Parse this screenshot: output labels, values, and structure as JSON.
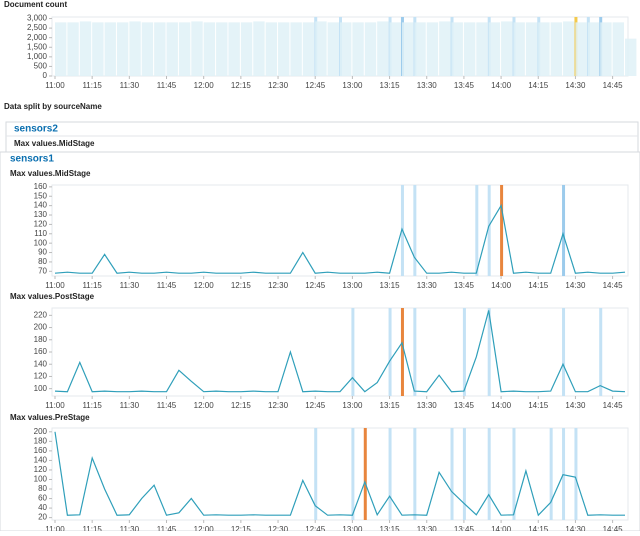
{
  "split_label": "Data split by sourceName",
  "panels": [
    {
      "name": "sensors2",
      "label": "Max values.MidStage"
    },
    {
      "name": "sensors1"
    }
  ],
  "chart_data": [
    {
      "type": "bar",
      "title": "Document count",
      "color": "#dff1f7",
      "x": [
        "11:00",
        "11:05",
        "11:10",
        "11:15",
        "11:20",
        "11:25",
        "11:30",
        "11:35",
        "11:40",
        "11:45",
        "11:50",
        "11:55",
        "12:00",
        "12:05",
        "12:10",
        "12:15",
        "12:20",
        "12:25",
        "12:30",
        "12:35",
        "12:40",
        "12:45",
        "12:50",
        "12:55",
        "13:00",
        "13:05",
        "13:10",
        "13:15",
        "13:20",
        "13:25",
        "13:30",
        "13:35",
        "13:40",
        "13:45",
        "13:50",
        "13:55",
        "14:00",
        "14:05",
        "14:10",
        "14:15",
        "14:20",
        "14:25",
        "14:30",
        "14:35",
        "14:40",
        "14:45",
        "14:50"
      ],
      "values": [
        2800,
        2800,
        2850,
        2800,
        2800,
        2800,
        2850,
        2800,
        2800,
        2800,
        2800,
        2850,
        2800,
        2800,
        2800,
        2800,
        2850,
        2800,
        2800,
        2800,
        2800,
        2850,
        2800,
        2800,
        2800,
        2800,
        2850,
        2800,
        2800,
        2800,
        2800,
        2850,
        2800,
        2800,
        2800,
        2800,
        2850,
        2800,
        2800,
        2800,
        2800,
        2850,
        2800,
        2800,
        2800,
        2800,
        1950
      ],
      "ylim": [
        0,
        3080
      ],
      "yticks": [
        0,
        500,
        {
          "value": 1000,
          "label": "1,000"
        },
        {
          "value": 1500,
          "label": "1,500"
        },
        {
          "value": 2000,
          "label": "2,000"
        },
        {
          "value": 2500,
          "label": "2,500"
        },
        {
          "value": 3000,
          "label": "3,000"
        }
      ],
      "xlim": [
        "11:00",
        "14:50"
      ],
      "xticks": [
        "11:00",
        "11:15",
        "11:30",
        "11:45",
        "12:00",
        "12:15",
        "12:30",
        "12:45",
        "13:00",
        "13:15",
        "13:30",
        "13:45",
        "14:00",
        "14:15",
        "14:30",
        "14:45"
      ],
      "anomalies": [
        {
          "x": "12:45",
          "color": "#c4e2f5"
        },
        {
          "x": "12:55",
          "color": "#c4e2f5"
        },
        {
          "x": "13:15",
          "color": "#c4e2f5"
        },
        {
          "x": "13:20",
          "color": "#9ccbec"
        },
        {
          "x": "13:25",
          "color": "#c4e2f5"
        },
        {
          "x": "13:40",
          "color": "#c4e2f5"
        },
        {
          "x": "13:55",
          "color": "#c4e2f5"
        },
        {
          "x": "14:05",
          "color": "#c4e2f5"
        },
        {
          "x": "14:15",
          "color": "#c4e2f5"
        },
        {
          "x": "14:30",
          "color": "#f2c94c"
        },
        {
          "x": "14:35",
          "color": "#c4e2f5"
        },
        {
          "x": "14:40",
          "color": "#9ccbec"
        }
      ]
    },
    {
      "type": "line",
      "title": "Max values.MidStage",
      "color": "#2f9fba",
      "x": [
        "11:00",
        "11:05",
        "11:10",
        "11:15",
        "11:20",
        "11:25",
        "11:30",
        "11:35",
        "11:40",
        "11:45",
        "11:50",
        "11:55",
        "12:00",
        "12:05",
        "12:10",
        "12:15",
        "12:20",
        "12:25",
        "12:30",
        "12:35",
        "12:40",
        "12:45",
        "12:50",
        "12:55",
        "13:00",
        "13:05",
        "13:10",
        "13:15",
        "13:20",
        "13:25",
        "13:30",
        "13:35",
        "13:40",
        "13:45",
        "13:50",
        "13:55",
        "14:00",
        "14:05",
        "14:10",
        "14:15",
        "14:20",
        "14:25",
        "14:30",
        "14:35",
        "14:40",
        "14:45",
        "14:50"
      ],
      "values": [
        68,
        69,
        68,
        68,
        88,
        68,
        69,
        68,
        68,
        69,
        68,
        68,
        69,
        68,
        68,
        68,
        69,
        68,
        68,
        68,
        90,
        68,
        69,
        68,
        68,
        68,
        69,
        68,
        115,
        85,
        68,
        68,
        69,
        68,
        68,
        118,
        140,
        68,
        69,
        68,
        68,
        110,
        68,
        69,
        68,
        68,
        69
      ],
      "ylim": [
        65,
        162
      ],
      "yticks": [
        70,
        80,
        90,
        100,
        110,
        120,
        130,
        140,
        150,
        160
      ],
      "xlim": [
        "11:00",
        "14:50"
      ],
      "xticks": [
        "11:00",
        "11:15",
        "11:30",
        "11:45",
        "12:00",
        "12:15",
        "12:30",
        "12:45",
        "13:00",
        "13:15",
        "13:30",
        "13:45",
        "14:00",
        "14:15",
        "14:30",
        "14:45"
      ],
      "anomalies": [
        {
          "x": "13:20",
          "color": "#c4e2f5"
        },
        {
          "x": "13:25",
          "color": "#c4e2f5"
        },
        {
          "x": "13:50",
          "color": "#c4e2f5"
        },
        {
          "x": "13:55",
          "color": "#c4e2f5"
        },
        {
          "x": "14:00",
          "color": "#e8853d"
        },
        {
          "x": "14:25",
          "color": "#9ccbec"
        }
      ]
    },
    {
      "type": "line",
      "title": "Max values.PostStage",
      "color": "#2f9fba",
      "x": [
        "11:00",
        "11:05",
        "11:10",
        "11:15",
        "11:20",
        "11:25",
        "11:30",
        "11:35",
        "11:40",
        "11:45",
        "11:50",
        "11:55",
        "12:00",
        "12:05",
        "12:10",
        "12:15",
        "12:20",
        "12:25",
        "12:30",
        "12:35",
        "12:40",
        "12:45",
        "12:50",
        "12:55",
        "13:00",
        "13:05",
        "13:10",
        "13:15",
        "13:20",
        "13:25",
        "13:30",
        "13:35",
        "13:40",
        "13:45",
        "13:50",
        "13:55",
        "14:00",
        "14:05",
        "14:10",
        "14:15",
        "14:20",
        "14:25",
        "14:30",
        "14:35",
        "14:40",
        "14:45",
        "14:50"
      ],
      "values": [
        96,
        95,
        143,
        95,
        96,
        95,
        95,
        96,
        95,
        95,
        130,
        112,
        95,
        96,
        95,
        95,
        96,
        95,
        95,
        160,
        95,
        96,
        95,
        95,
        118,
        95,
        110,
        145,
        175,
        96,
        95,
        122,
        95,
        96,
        152,
        228,
        95,
        96,
        95,
        95,
        96,
        140,
        95,
        95,
        105,
        96,
        95
      ],
      "ylim": [
        88,
        232
      ],
      "yticks": [
        100,
        120,
        140,
        160,
        180,
        200,
        220
      ],
      "xlim": [
        "11:00",
        "14:50"
      ],
      "xticks": [
        "11:00",
        "11:15",
        "11:30",
        "11:45",
        "12:00",
        "12:15",
        "12:30",
        "12:45",
        "13:00",
        "13:15",
        "13:30",
        "13:45",
        "14:00",
        "14:15",
        "14:30",
        "14:45"
      ],
      "anomalies": [
        {
          "x": "13:00",
          "color": "#c4e2f5"
        },
        {
          "x": "13:15",
          "color": "#c4e2f5"
        },
        {
          "x": "13:20",
          "color": "#e8853d"
        },
        {
          "x": "13:25",
          "color": "#c4e2f5"
        },
        {
          "x": "13:45",
          "color": "#c4e2f5"
        },
        {
          "x": "13:55",
          "color": "#c4e2f5"
        },
        {
          "x": "14:25",
          "color": "#c4e2f5"
        },
        {
          "x": "14:40",
          "color": "#c4e2f5"
        }
      ]
    },
    {
      "type": "line",
      "title": "Max values.PreStage",
      "color": "#2f9fba",
      "x": [
        "11:00",
        "11:05",
        "11:10",
        "11:15",
        "11:20",
        "11:25",
        "11:30",
        "11:35",
        "11:40",
        "11:45",
        "11:50",
        "11:55",
        "12:00",
        "12:05",
        "12:10",
        "12:15",
        "12:20",
        "12:25",
        "12:30",
        "12:35",
        "12:40",
        "12:45",
        "12:50",
        "12:55",
        "13:00",
        "13:05",
        "13:10",
        "13:15",
        "13:20",
        "13:25",
        "13:30",
        "13:35",
        "13:40",
        "13:45",
        "13:50",
        "13:55",
        "14:00",
        "14:05",
        "14:10",
        "14:15",
        "14:20",
        "14:25",
        "14:30",
        "14:35",
        "14:40",
        "14:45",
        "14:50"
      ],
      "values": [
        200,
        25,
        26,
        145,
        80,
        25,
        26,
        60,
        88,
        25,
        30,
        60,
        25,
        26,
        25,
        25,
        26,
        25,
        25,
        25,
        98,
        45,
        25,
        26,
        25,
        95,
        26,
        65,
        25,
        26,
        25,
        115,
        75,
        50,
        26,
        68,
        25,
        26,
        118,
        25,
        52,
        110,
        105,
        25,
        26,
        25,
        25
      ],
      "ylim": [
        15,
        208
      ],
      "yticks": [
        20,
        40,
        60,
        80,
        100,
        120,
        140,
        160,
        180,
        200
      ],
      "xlim": [
        "11:00",
        "14:50"
      ],
      "xticks": [
        "11:00",
        "11:15",
        "11:30",
        "11:45",
        "12:00",
        "12:15",
        "12:30",
        "12:45",
        "13:00",
        "13:15",
        "13:30",
        "13:45",
        "14:00",
        "14:15",
        "14:30",
        "14:45"
      ],
      "anomalies": [
        {
          "x": "12:45",
          "color": "#c4e2f5"
        },
        {
          "x": "13:00",
          "color": "#c4e2f5"
        },
        {
          "x": "13:05",
          "color": "#e8853d"
        },
        {
          "x": "13:15",
          "color": "#c4e2f5"
        },
        {
          "x": "13:25",
          "color": "#c4e2f5"
        },
        {
          "x": "13:40",
          "color": "#c4e2f5"
        },
        {
          "x": "13:45",
          "color": "#c4e2f5"
        },
        {
          "x": "13:55",
          "color": "#c4e2f5"
        },
        {
          "x": "14:05",
          "color": "#c4e2f5"
        },
        {
          "x": "14:20",
          "color": "#c4e2f5"
        },
        {
          "x": "14:25",
          "color": "#c4e2f5"
        },
        {
          "x": "14:30",
          "color": "#c4e2f5"
        }
      ]
    }
  ]
}
